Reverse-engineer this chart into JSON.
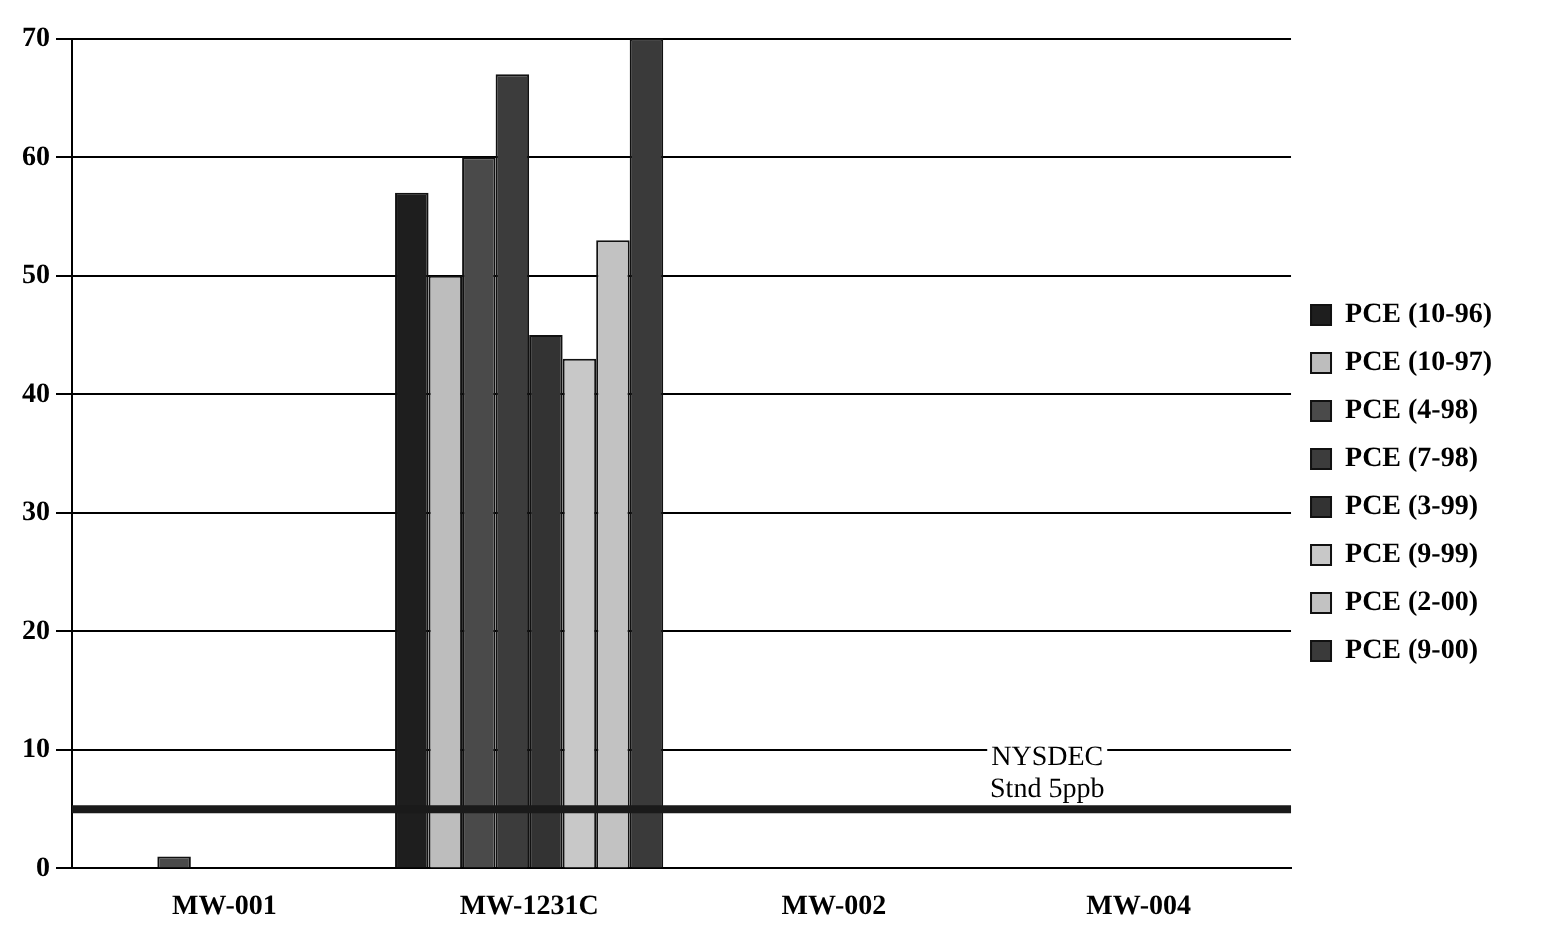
{
  "chart_data": {
    "type": "bar",
    "categories": [
      "MW-001",
      "MW-1231C",
      "MW-002",
      "MW-004"
    ],
    "series": [
      {
        "name": "PCE (10-96)",
        "color": "#1e1e1e",
        "values": [
          0,
          57,
          0,
          0
        ]
      },
      {
        "name": "PCE (10-97)",
        "color": "#bdbdbd",
        "values": [
          0,
          50,
          0,
          0
        ]
      },
      {
        "name": "PCE (4-98)",
        "color": "#4a4a4a",
        "values": [
          1,
          60,
          0,
          0
        ]
      },
      {
        "name": "PCE (7-98)",
        "color": "#3c3c3c",
        "values": [
          0,
          67,
          0,
          0
        ]
      },
      {
        "name": "PCE (3-99)",
        "color": "#333333",
        "values": [
          0,
          45,
          0,
          0
        ]
      },
      {
        "name": "PCE (9-99)",
        "color": "#c8c8c8",
        "values": [
          0,
          43,
          0,
          0
        ]
      },
      {
        "name": "PCE (2-00)",
        "color": "#c2c2c2",
        "values": [
          0,
          53,
          0,
          0
        ]
      },
      {
        "name": "PCE (9-00)",
        "color": "#3a3a3a",
        "values": [
          0,
          70,
          0,
          0
        ]
      }
    ],
    "ylim": [
      0,
      70
    ],
    "yticks": [
      0,
      10,
      20,
      30,
      40,
      50,
      60,
      70
    ],
    "grid": "y",
    "legend": "right",
    "ref_lines": [
      {
        "axis": "y",
        "value": 5,
        "label": "NYSDEC Stnd 5ppb",
        "color": "#1a1a1a"
      }
    ]
  }
}
